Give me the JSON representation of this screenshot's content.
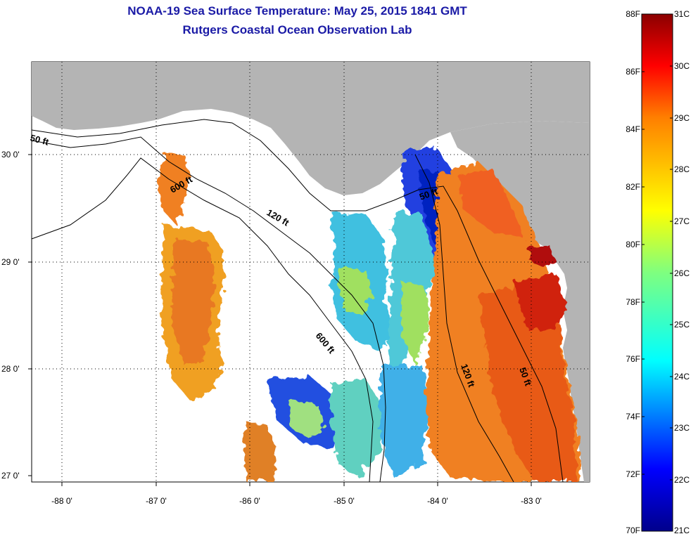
{
  "title": {
    "line1": "NOAA-19 Sea Surface Temperature:  May 25, 2015 1841 GMT",
    "line2": "Rutgers Coastal Ocean Observation Lab"
  },
  "map": {
    "lat_labels": [
      "30 0'",
      "29 0'",
      "28 0'",
      "27 0'"
    ],
    "lon_labels": [
      "-88 0'",
      "-87 0'",
      "-86 0'",
      "-85 0'",
      "-84 0'",
      "-83 0'"
    ],
    "contour_labels": [
      "50 ft",
      "600 ft",
      "120 ft",
      "600 ft",
      "50 ft",
      "120 ft",
      "50 ft"
    ],
    "colors": {
      "land": "#b4b4b4",
      "no_data": "#ffffff",
      "title": "#1a1aa6"
    }
  },
  "colorbar": {
    "f_labels": [
      "88F",
      "86F",
      "84F",
      "82F",
      "80F",
      "78F",
      "76F",
      "74F",
      "72F",
      "70F"
    ],
    "c_labels": [
      "31C",
      "30C",
      "29C",
      "28C",
      "27C",
      "26C",
      "25C",
      "24C",
      "23C",
      "22C",
      "21C"
    ],
    "range_f": [
      70,
      88
    ],
    "range_c": [
      21,
      31
    ]
  }
}
